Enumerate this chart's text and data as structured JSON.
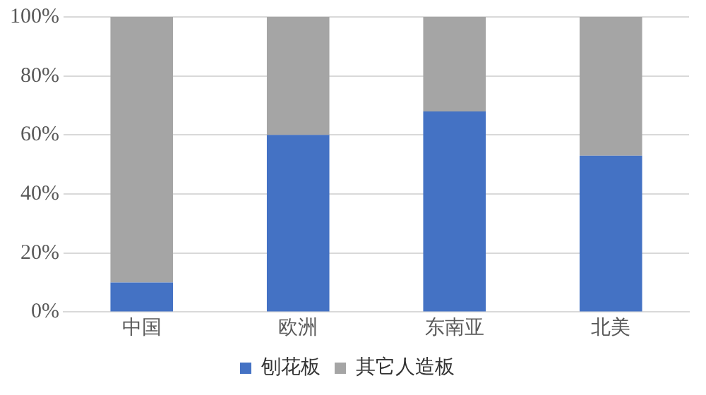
{
  "chart_data": {
    "type": "bar",
    "stacked": true,
    "categories": [
      "中国",
      "欧洲",
      "东南亚",
      "北美"
    ],
    "series": [
      {
        "name": "刨花板",
        "color": "#4472c4",
        "values": [
          10,
          60,
          68,
          53
        ]
      },
      {
        "name": "其它人造板",
        "color": "#a5a5a5",
        "values": [
          90,
          40,
          32,
          47
        ]
      }
    ],
    "ylim": [
      0,
      100
    ],
    "yticks": [
      {
        "value": 0,
        "label": "0%"
      },
      {
        "value": 20,
        "label": "20%"
      },
      {
        "value": 40,
        "label": "40%"
      },
      {
        "value": 60,
        "label": "60%"
      },
      {
        "value": 80,
        "label": "80%"
      },
      {
        "value": 100,
        "label": "100%"
      }
    ],
    "grid": "y",
    "legend": "bottom"
  }
}
